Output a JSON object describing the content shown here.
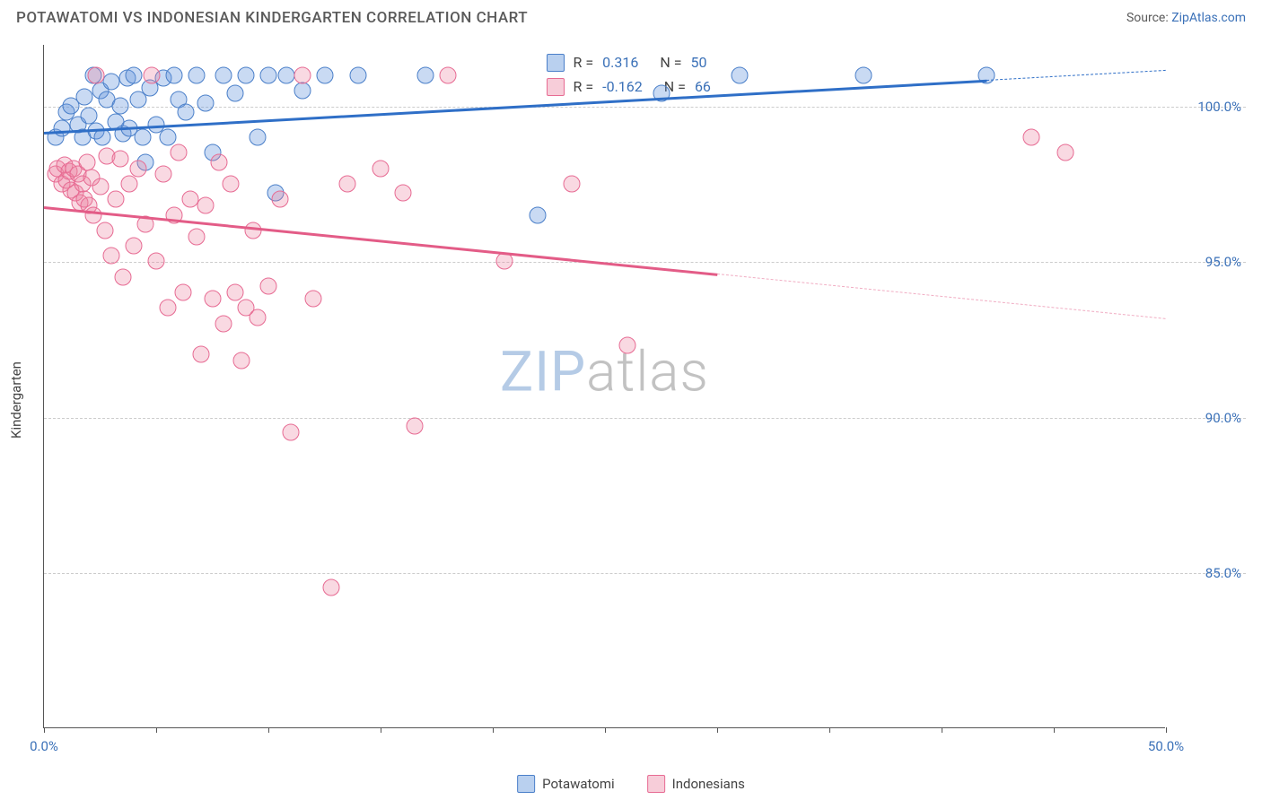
{
  "header": {
    "title": "POTAWATOMI VS INDONESIAN KINDERGARTEN CORRELATION CHART",
    "source_label": "Source: ",
    "source_name": "ZipAtlas.com"
  },
  "chart": {
    "type": "scatter",
    "ylabel": "Kindergarten",
    "xlim": [
      0,
      50
    ],
    "ylim": [
      80,
      102
    ],
    "y_gridlines": [
      85,
      90,
      95,
      100
    ],
    "y_tick_labels": [
      "85.0%",
      "90.0%",
      "95.0%",
      "100.0%"
    ],
    "x_ticks": [
      0,
      5,
      10,
      15,
      20,
      25,
      30,
      35,
      40,
      45,
      50
    ],
    "x_tick_labels_shown": {
      "0": "0.0%",
      "50": "50.0%"
    },
    "grid_color": "#cccccc",
    "axis_color": "#555555",
    "background_color": "#ffffff",
    "watermark": {
      "text_a": "ZIP",
      "text_b": "atlas",
      "fontsize": 62
    },
    "series": [
      {
        "name": "Potawatomi",
        "color_fill": "rgba(100,150,220,0.35)",
        "color_stroke": "#4a7fc9",
        "marker_radius": 9.5,
        "R": 0.316,
        "N": 50,
        "trend": {
          "x1": 0,
          "y1": 99.2,
          "x2": 50,
          "y2": 101.2,
          "solid_until_x": 42
        },
        "points": [
          [
            0.5,
            99.0
          ],
          [
            0.8,
            99.3
          ],
          [
            1.0,
            99.8
          ],
          [
            1.2,
            100.0
          ],
          [
            1.5,
            99.4
          ],
          [
            1.7,
            99.0
          ],
          [
            1.8,
            100.3
          ],
          [
            2.0,
            99.7
          ],
          [
            2.2,
            101.0
          ],
          [
            2.3,
            99.2
          ],
          [
            2.5,
            100.5
          ],
          [
            2.6,
            99.0
          ],
          [
            2.8,
            100.2
          ],
          [
            3.0,
            100.8
          ],
          [
            3.2,
            99.5
          ],
          [
            3.4,
            100.0
          ],
          [
            3.5,
            99.1
          ],
          [
            3.7,
            100.9
          ],
          [
            3.8,
            99.3
          ],
          [
            4.0,
            101.0
          ],
          [
            4.2,
            100.2
          ],
          [
            4.4,
            99.0
          ],
          [
            4.5,
            98.2
          ],
          [
            4.7,
            100.6
          ],
          [
            5.0,
            99.4
          ],
          [
            5.3,
            100.9
          ],
          [
            5.5,
            99.0
          ],
          [
            5.8,
            101.0
          ],
          [
            6.0,
            100.2
          ],
          [
            6.3,
            99.8
          ],
          [
            6.8,
            101.0
          ],
          [
            7.2,
            100.1
          ],
          [
            7.5,
            98.5
          ],
          [
            8.0,
            101.0
          ],
          [
            8.5,
            100.4
          ],
          [
            9.0,
            101.0
          ],
          [
            9.5,
            99.0
          ],
          [
            10.0,
            101.0
          ],
          [
            10.3,
            97.2
          ],
          [
            10.8,
            101.0
          ],
          [
            11.5,
            100.5
          ],
          [
            12.5,
            101.0
          ],
          [
            14.0,
            101.0
          ],
          [
            17.0,
            101.0
          ],
          [
            22.0,
            96.5
          ],
          [
            27.5,
            100.4
          ],
          [
            31.0,
            101.0
          ],
          [
            36.5,
            101.0
          ],
          [
            42.0,
            101.0
          ]
        ]
      },
      {
        "name": "Indonesians",
        "color_fill": "rgba(235,130,160,0.30)",
        "color_stroke": "#e76b93",
        "R": -0.162,
        "N": 66,
        "trend": {
          "x1": 0,
          "y1": 96.8,
          "x2": 50,
          "y2": 93.2,
          "solid_until_x": 30
        },
        "points": [
          [
            0.5,
            97.8
          ],
          [
            0.6,
            98.0
          ],
          [
            0.8,
            97.5
          ],
          [
            0.9,
            98.1
          ],
          [
            1.0,
            97.6
          ],
          [
            1.1,
            97.9
          ],
          [
            1.2,
            97.3
          ],
          [
            1.3,
            98.0
          ],
          [
            1.4,
            97.2
          ],
          [
            1.5,
            97.8
          ],
          [
            1.6,
            96.9
          ],
          [
            1.7,
            97.5
          ],
          [
            1.8,
            97.0
          ],
          [
            1.9,
            98.2
          ],
          [
            2.0,
            96.8
          ],
          [
            2.1,
            97.7
          ],
          [
            2.2,
            96.5
          ],
          [
            2.3,
            101.0
          ],
          [
            2.5,
            97.4
          ],
          [
            2.7,
            96.0
          ],
          [
            2.8,
            98.4
          ],
          [
            3.0,
            95.2
          ],
          [
            3.2,
            97.0
          ],
          [
            3.4,
            98.3
          ],
          [
            3.5,
            94.5
          ],
          [
            3.8,
            97.5
          ],
          [
            4.0,
            95.5
          ],
          [
            4.2,
            98.0
          ],
          [
            4.5,
            96.2
          ],
          [
            4.8,
            101.0
          ],
          [
            5.0,
            95.0
          ],
          [
            5.3,
            97.8
          ],
          [
            5.5,
            93.5
          ],
          [
            5.8,
            96.5
          ],
          [
            6.0,
            98.5
          ],
          [
            6.2,
            94.0
          ],
          [
            6.5,
            97.0
          ],
          [
            6.8,
            95.8
          ],
          [
            7.0,
            92.0
          ],
          [
            7.2,
            96.8
          ],
          [
            7.5,
            93.8
          ],
          [
            7.8,
            98.2
          ],
          [
            8.0,
            93.0
          ],
          [
            8.3,
            97.5
          ],
          [
            8.5,
            94.0
          ],
          [
            8.8,
            91.8
          ],
          [
            9.0,
            93.5
          ],
          [
            9.3,
            96.0
          ],
          [
            9.5,
            93.2
          ],
          [
            10.0,
            94.2
          ],
          [
            10.5,
            97.0
          ],
          [
            11.0,
            89.5
          ],
          [
            11.5,
            101.0
          ],
          [
            12.0,
            93.8
          ],
          [
            12.8,
            84.5
          ],
          [
            13.5,
            97.5
          ],
          [
            15.0,
            98.0
          ],
          [
            16.0,
            97.2
          ],
          [
            16.5,
            89.7
          ],
          [
            18.0,
            101.0
          ],
          [
            20.5,
            95.0
          ],
          [
            23.5,
            97.5
          ],
          [
            26.0,
            92.3
          ],
          [
            44.0,
            99.0
          ],
          [
            45.5,
            98.5
          ]
        ]
      }
    ],
    "stats_legend": {
      "rows": [
        {
          "swatch": "blue",
          "r_label": "R =",
          "r_val": "0.316",
          "n_label": "N =",
          "n_val": "50"
        },
        {
          "swatch": "pink",
          "r_label": "R =",
          "r_val": "-0.162",
          "n_label": "N =",
          "n_val": "66"
        }
      ]
    },
    "bottom_legend": [
      {
        "swatch": "blue",
        "label": "Potawatomi"
      },
      {
        "swatch": "pink",
        "label": "Indonesians"
      }
    ]
  }
}
